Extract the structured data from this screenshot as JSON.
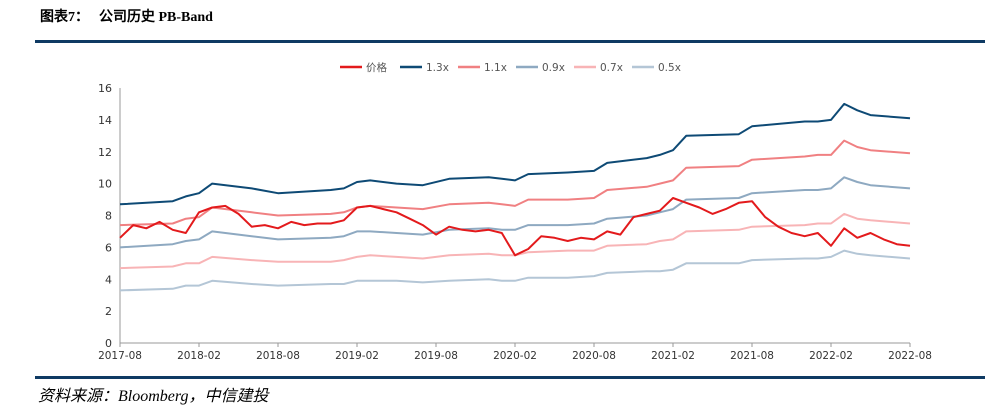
{
  "figure": {
    "label": "图表7：",
    "title": "公司历史 PB-Band"
  },
  "source": "资料来源：Bloomberg，中信建投",
  "chart_data": {
    "type": "line",
    "title": "公司历史 PB-Band",
    "xlabel": "",
    "ylabel": "",
    "ylim": [
      0,
      16
    ],
    "yticks": [
      0,
      2,
      4,
      6,
      8,
      10,
      12,
      14,
      16
    ],
    "xlim": [
      "2017-08",
      "2022-08"
    ],
    "xticks": [
      "2017-08",
      "2018-02",
      "2018-08",
      "2019-02",
      "2019-08",
      "2020-02",
      "2020-08",
      "2021-02",
      "2021-08",
      "2022-02",
      "2022-08"
    ],
    "grid": false,
    "legend_position": "top-center",
    "series": [
      {
        "name": "价格",
        "color": "#e31a1c",
        "width": 2,
        "points": [
          [
            "2017-08",
            6.6
          ],
          [
            "2017-09",
            7.4
          ],
          [
            "2017-10",
            7.2
          ],
          [
            "2017-11",
            7.6
          ],
          [
            "2017-12",
            7.1
          ],
          [
            "2018-01",
            6.9
          ],
          [
            "2018-02",
            8.2
          ],
          [
            "2018-03",
            8.5
          ],
          [
            "2018-04",
            8.6
          ],
          [
            "2018-05",
            8.1
          ],
          [
            "2018-06",
            7.3
          ],
          [
            "2018-07",
            7.4
          ],
          [
            "2018-08",
            7.2
          ],
          [
            "2018-09",
            7.6
          ],
          [
            "2018-10",
            7.4
          ],
          [
            "2018-11",
            7.5
          ],
          [
            "2018-12",
            7.5
          ],
          [
            "2019-01",
            7.7
          ],
          [
            "2019-02",
            8.5
          ],
          [
            "2019-03",
            8.6
          ],
          [
            "2019-04",
            8.4
          ],
          [
            "2019-05",
            8.2
          ],
          [
            "2019-06",
            7.8
          ],
          [
            "2019-07",
            7.4
          ],
          [
            "2019-08",
            6.8
          ],
          [
            "2019-09",
            7.3
          ],
          [
            "2019-10",
            7.1
          ],
          [
            "2019-11",
            7.0
          ],
          [
            "2019-12",
            7.1
          ],
          [
            "2020-01",
            6.9
          ],
          [
            "2020-02",
            5.5
          ],
          [
            "2020-03",
            5.9
          ],
          [
            "2020-04",
            6.7
          ],
          [
            "2020-05",
            6.6
          ],
          [
            "2020-06",
            6.4
          ],
          [
            "2020-07",
            6.6
          ],
          [
            "2020-08",
            6.5
          ],
          [
            "2020-09",
            7.0
          ],
          [
            "2020-10",
            6.8
          ],
          [
            "2020-11",
            7.9
          ],
          [
            "2020-12",
            8.1
          ],
          [
            "2021-01",
            8.3
          ],
          [
            "2021-02",
            9.1
          ],
          [
            "2021-03",
            8.8
          ],
          [
            "2021-04",
            8.5
          ],
          [
            "2021-05",
            8.1
          ],
          [
            "2021-06",
            8.4
          ],
          [
            "2021-07",
            8.8
          ],
          [
            "2021-08",
            8.9
          ],
          [
            "2021-09",
            7.9
          ],
          [
            "2021-10",
            7.3
          ],
          [
            "2021-11",
            6.9
          ],
          [
            "2021-12",
            6.7
          ],
          [
            "2022-01",
            6.9
          ],
          [
            "2022-02",
            6.1
          ],
          [
            "2022-03",
            7.2
          ],
          [
            "2022-04",
            6.6
          ],
          [
            "2022-05",
            6.9
          ],
          [
            "2022-06",
            6.5
          ],
          [
            "2022-07",
            6.2
          ],
          [
            "2022-08",
            6.1
          ]
        ]
      },
      {
        "name": "1.3x",
        "color": "#0e4a75",
        "width": 2,
        "points": [
          [
            "2017-08",
            8.7
          ],
          [
            "2017-12",
            8.9
          ],
          [
            "2018-01",
            9.2
          ],
          [
            "2018-02",
            9.4
          ],
          [
            "2018-03",
            10.0
          ],
          [
            "2018-06",
            9.7
          ],
          [
            "2018-08",
            9.4
          ],
          [
            "2018-12",
            9.6
          ],
          [
            "2019-01",
            9.7
          ],
          [
            "2019-02",
            10.1
          ],
          [
            "2019-03",
            10.2
          ],
          [
            "2019-05",
            10.0
          ],
          [
            "2019-07",
            9.9
          ],
          [
            "2019-09",
            10.3
          ],
          [
            "2019-12",
            10.4
          ],
          [
            "2020-01",
            10.3
          ],
          [
            "2020-02",
            10.2
          ],
          [
            "2020-03",
            10.6
          ],
          [
            "2020-06",
            10.7
          ],
          [
            "2020-08",
            10.8
          ],
          [
            "2020-09",
            11.3
          ],
          [
            "2020-12",
            11.6
          ],
          [
            "2021-01",
            11.8
          ],
          [
            "2021-02",
            12.1
          ],
          [
            "2021-03",
            13.0
          ],
          [
            "2021-07",
            13.1
          ],
          [
            "2021-08",
            13.6
          ],
          [
            "2021-12",
            13.9
          ],
          [
            "2022-01",
            13.9
          ],
          [
            "2022-02",
            14.0
          ],
          [
            "2022-03",
            15.0
          ],
          [
            "2022-04",
            14.6
          ],
          [
            "2022-05",
            14.3
          ],
          [
            "2022-08",
            14.1
          ]
        ]
      },
      {
        "name": "1.1x",
        "color": "#f08082",
        "width": 2,
        "points": [
          [
            "2017-08",
            7.4
          ],
          [
            "2017-12",
            7.5
          ],
          [
            "2018-01",
            7.8
          ],
          [
            "2018-02",
            7.9
          ],
          [
            "2018-03",
            8.5
          ],
          [
            "2018-06",
            8.2
          ],
          [
            "2018-08",
            8.0
          ],
          [
            "2018-12",
            8.1
          ],
          [
            "2019-01",
            8.2
          ],
          [
            "2019-02",
            8.5
          ],
          [
            "2019-03",
            8.6
          ],
          [
            "2019-05",
            8.5
          ],
          [
            "2019-07",
            8.4
          ],
          [
            "2019-09",
            8.7
          ],
          [
            "2019-12",
            8.8
          ],
          [
            "2020-01",
            8.7
          ],
          [
            "2020-02",
            8.6
          ],
          [
            "2020-03",
            9.0
          ],
          [
            "2020-06",
            9.0
          ],
          [
            "2020-08",
            9.1
          ],
          [
            "2020-09",
            9.6
          ],
          [
            "2020-12",
            9.8
          ],
          [
            "2021-01",
            10.0
          ],
          [
            "2021-02",
            10.2
          ],
          [
            "2021-03",
            11.0
          ],
          [
            "2021-07",
            11.1
          ],
          [
            "2021-08",
            11.5
          ],
          [
            "2021-12",
            11.7
          ],
          [
            "2022-01",
            11.8
          ],
          [
            "2022-02",
            11.8
          ],
          [
            "2022-03",
            12.7
          ],
          [
            "2022-04",
            12.3
          ],
          [
            "2022-05",
            12.1
          ],
          [
            "2022-08",
            11.9
          ]
        ]
      },
      {
        "name": "0.9x",
        "color": "#8ea9c1",
        "width": 2,
        "points": [
          [
            "2017-08",
            6.0
          ],
          [
            "2017-12",
            6.2
          ],
          [
            "2018-01",
            6.4
          ],
          [
            "2018-02",
            6.5
          ],
          [
            "2018-03",
            7.0
          ],
          [
            "2018-06",
            6.7
          ],
          [
            "2018-08",
            6.5
          ],
          [
            "2018-12",
            6.6
          ],
          [
            "2019-01",
            6.7
          ],
          [
            "2019-02",
            7.0
          ],
          [
            "2019-03",
            7.0
          ],
          [
            "2019-05",
            6.9
          ],
          [
            "2019-07",
            6.8
          ],
          [
            "2019-09",
            7.1
          ],
          [
            "2019-12",
            7.2
          ],
          [
            "2020-01",
            7.1
          ],
          [
            "2020-02",
            7.1
          ],
          [
            "2020-03",
            7.4
          ],
          [
            "2020-06",
            7.4
          ],
          [
            "2020-08",
            7.5
          ],
          [
            "2020-09",
            7.8
          ],
          [
            "2020-12",
            8.0
          ],
          [
            "2021-01",
            8.2
          ],
          [
            "2021-02",
            8.4
          ],
          [
            "2021-03",
            9.0
          ],
          [
            "2021-07",
            9.1
          ],
          [
            "2021-08",
            9.4
          ],
          [
            "2021-12",
            9.6
          ],
          [
            "2022-01",
            9.6
          ],
          [
            "2022-02",
            9.7
          ],
          [
            "2022-03",
            10.4
          ],
          [
            "2022-04",
            10.1
          ],
          [
            "2022-05",
            9.9
          ],
          [
            "2022-08",
            9.7
          ]
        ]
      },
      {
        "name": "0.7x",
        "color": "#f8b4b6",
        "width": 2,
        "points": [
          [
            "2017-08",
            4.7
          ],
          [
            "2017-12",
            4.8
          ],
          [
            "2018-01",
            5.0
          ],
          [
            "2018-02",
            5.0
          ],
          [
            "2018-03",
            5.4
          ],
          [
            "2018-06",
            5.2
          ],
          [
            "2018-08",
            5.1
          ],
          [
            "2018-12",
            5.1
          ],
          [
            "2019-01",
            5.2
          ],
          [
            "2019-02",
            5.4
          ],
          [
            "2019-03",
            5.5
          ],
          [
            "2019-05",
            5.4
          ],
          [
            "2019-07",
            5.3
          ],
          [
            "2019-09",
            5.5
          ],
          [
            "2019-12",
            5.6
          ],
          [
            "2020-01",
            5.5
          ],
          [
            "2020-02",
            5.5
          ],
          [
            "2020-03",
            5.7
          ],
          [
            "2020-06",
            5.8
          ],
          [
            "2020-08",
            5.8
          ],
          [
            "2020-09",
            6.1
          ],
          [
            "2020-12",
            6.2
          ],
          [
            "2021-01",
            6.4
          ],
          [
            "2021-02",
            6.5
          ],
          [
            "2021-03",
            7.0
          ],
          [
            "2021-07",
            7.1
          ],
          [
            "2021-08",
            7.3
          ],
          [
            "2021-12",
            7.4
          ],
          [
            "2022-01",
            7.5
          ],
          [
            "2022-02",
            7.5
          ],
          [
            "2022-03",
            8.1
          ],
          [
            "2022-04",
            7.8
          ],
          [
            "2022-05",
            7.7
          ],
          [
            "2022-08",
            7.5
          ]
        ]
      },
      {
        "name": "0.5x",
        "color": "#b4c6d6",
        "width": 2,
        "points": [
          [
            "2017-08",
            3.3
          ],
          [
            "2017-12",
            3.4
          ],
          [
            "2018-01",
            3.6
          ],
          [
            "2018-02",
            3.6
          ],
          [
            "2018-03",
            3.9
          ],
          [
            "2018-06",
            3.7
          ],
          [
            "2018-08",
            3.6
          ],
          [
            "2018-12",
            3.7
          ],
          [
            "2019-01",
            3.7
          ],
          [
            "2019-02",
            3.9
          ],
          [
            "2019-03",
            3.9
          ],
          [
            "2019-05",
            3.9
          ],
          [
            "2019-07",
            3.8
          ],
          [
            "2019-09",
            3.9
          ],
          [
            "2019-12",
            4.0
          ],
          [
            "2020-01",
            3.9
          ],
          [
            "2020-02",
            3.9
          ],
          [
            "2020-03",
            4.1
          ],
          [
            "2020-06",
            4.1
          ],
          [
            "2020-08",
            4.2
          ],
          [
            "2020-09",
            4.4
          ],
          [
            "2020-12",
            4.5
          ],
          [
            "2021-01",
            4.5
          ],
          [
            "2021-02",
            4.6
          ],
          [
            "2021-03",
            5.0
          ],
          [
            "2021-07",
            5.0
          ],
          [
            "2021-08",
            5.2
          ],
          [
            "2021-12",
            5.3
          ],
          [
            "2022-01",
            5.3
          ],
          [
            "2022-02",
            5.4
          ],
          [
            "2022-03",
            5.8
          ],
          [
            "2022-04",
            5.6
          ],
          [
            "2022-05",
            5.5
          ],
          [
            "2022-08",
            5.3
          ]
        ]
      }
    ]
  }
}
